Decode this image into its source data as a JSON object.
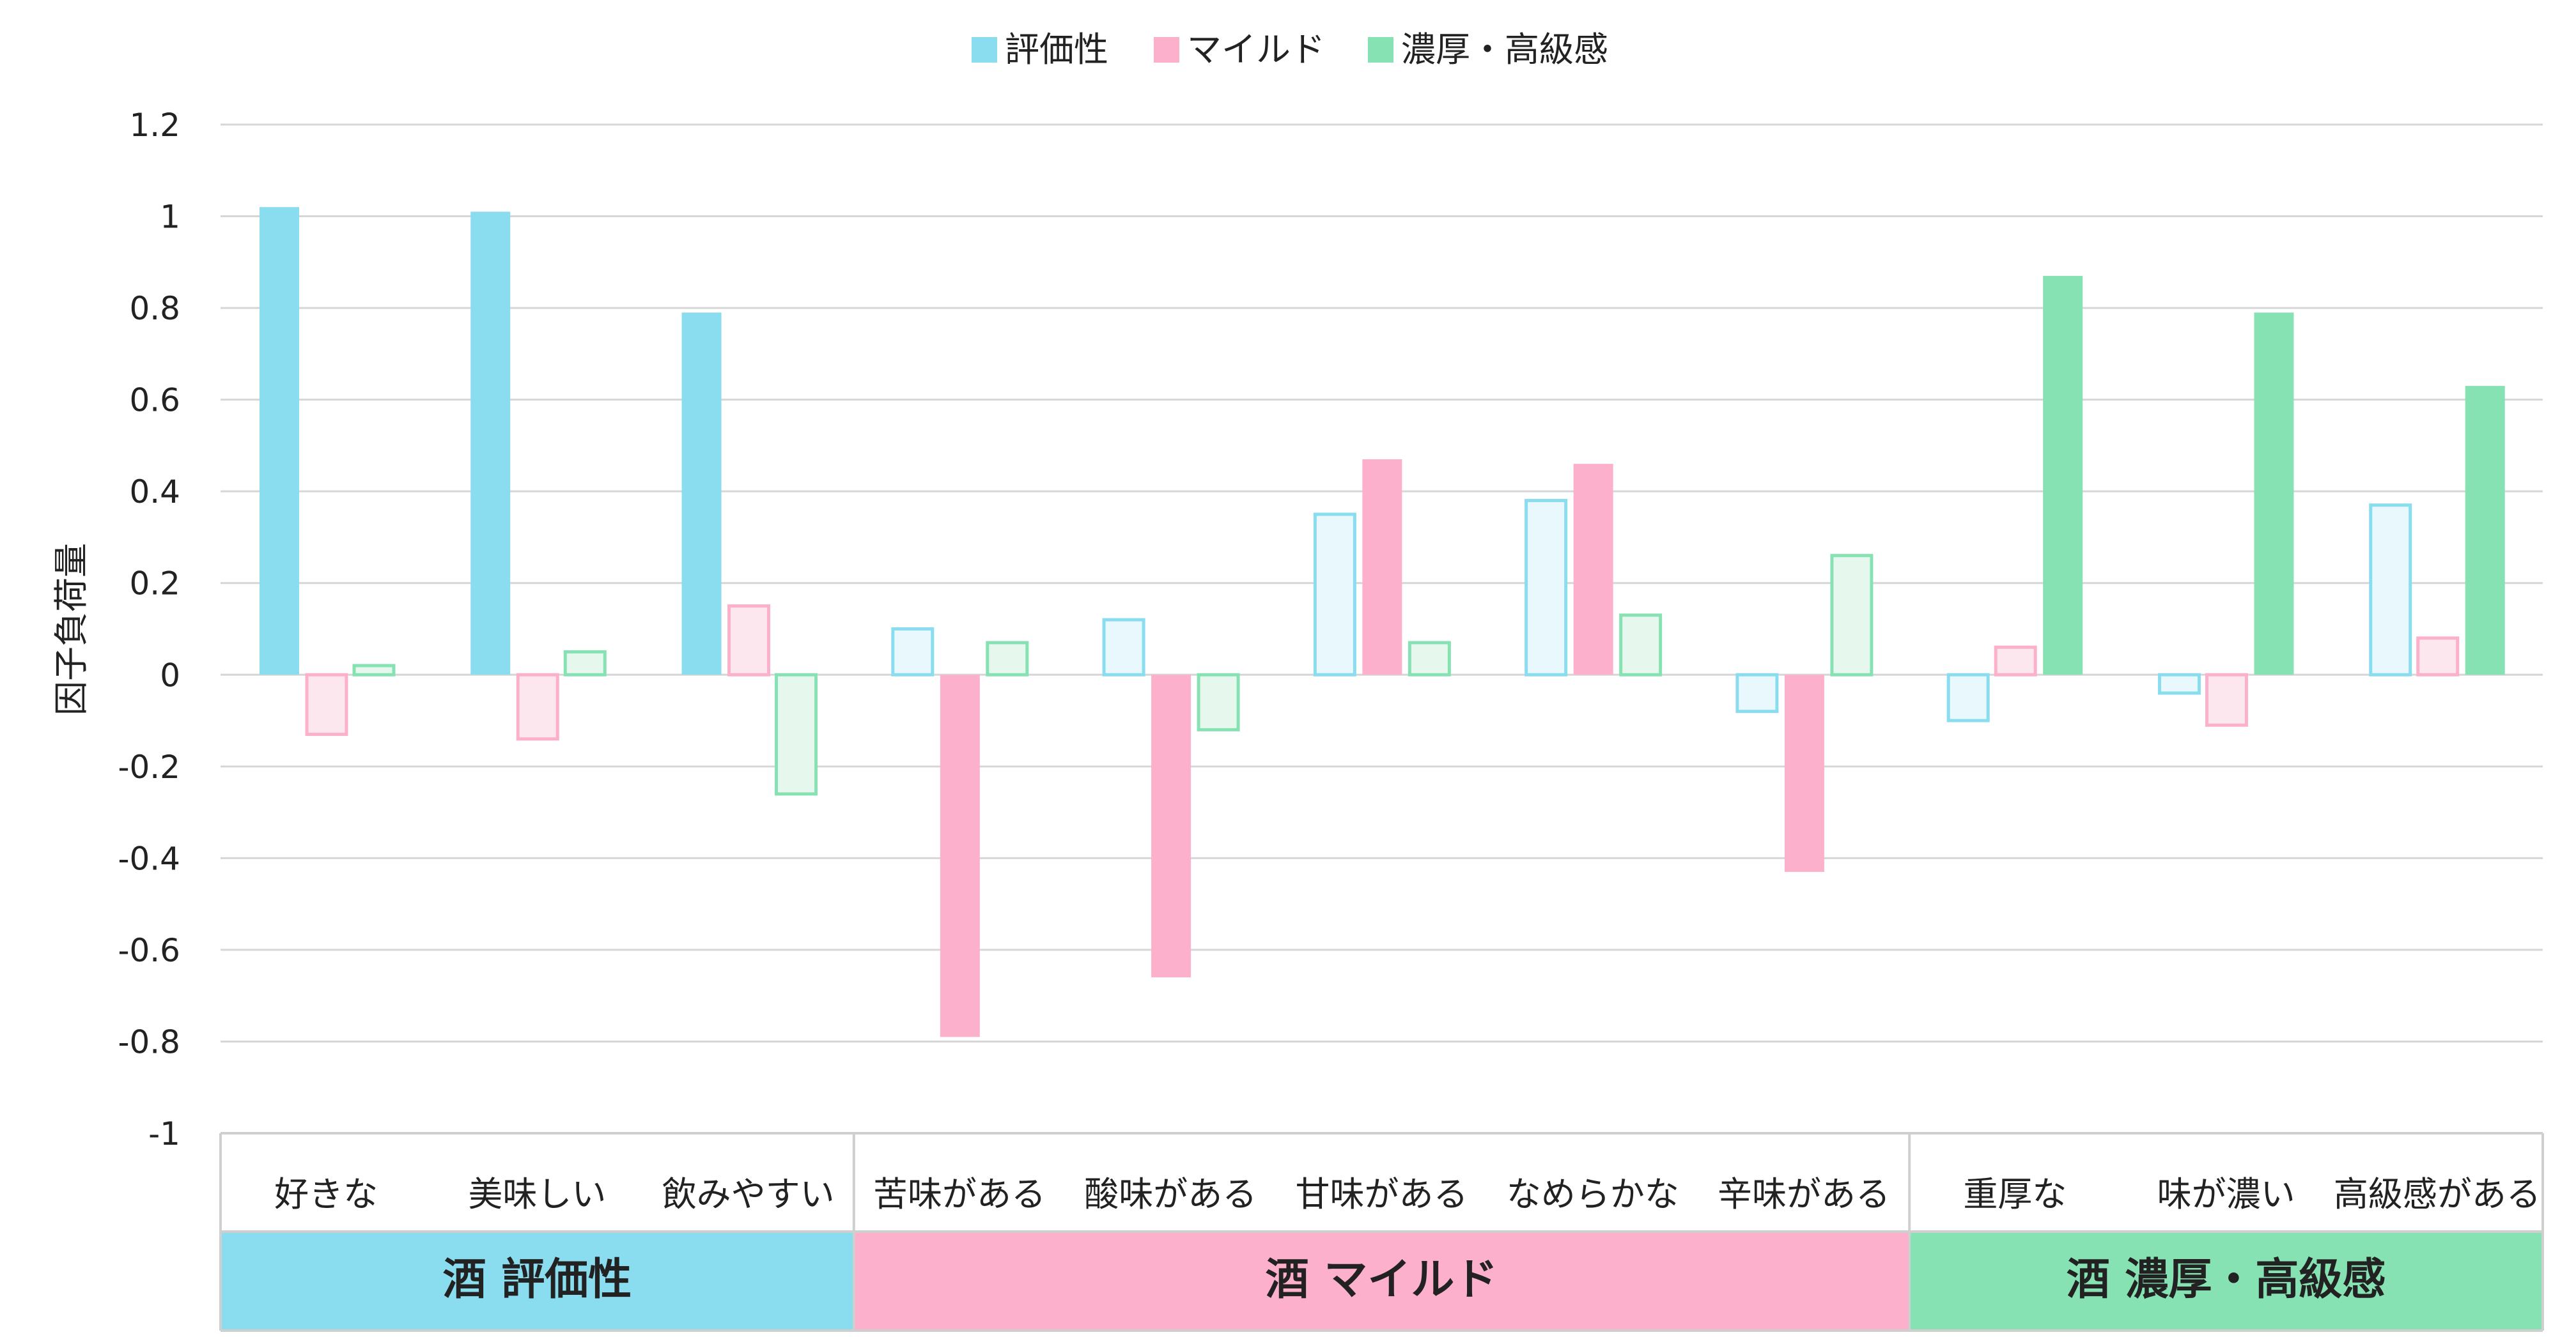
{
  "chart_data": {
    "type": "bar",
    "ylabel": "因子負荷量",
    "ylim": [
      -1,
      1.2
    ],
    "yticks": [
      "1.2",
      "1",
      "0.8",
      "0.6",
      "0.4",
      "0.2",
      "0",
      "-0.2",
      "-0.4",
      "-0.6",
      "-0.8",
      "-1"
    ],
    "ytick_values": [
      1.2,
      1,
      0.8,
      0.6,
      0.4,
      0.2,
      0,
      -0.2,
      -0.4,
      -0.6,
      -0.8,
      -1
    ],
    "grid": true,
    "legend_position": "top-center",
    "categories": [
      "好きな",
      "美味しい",
      "飲みやすい",
      "苦味がある",
      "酸味がある",
      "甘味がある",
      "なめらかな",
      "辛味がある",
      "重厚な",
      "味が濃い",
      "高級感がある"
    ],
    "series": [
      {
        "name": "評価性",
        "color": "#8adcef",
        "light": "#e8f8fc",
        "values": [
          1.02,
          1.01,
          0.79,
          0.1,
          0.12,
          0.35,
          0.38,
          -0.08,
          -0.1,
          -0.04,
          0.37
        ]
      },
      {
        "name": "マイルド",
        "color": "#fcb0cb",
        "light": "#fde7ef",
        "values": [
          -0.13,
          -0.14,
          0.15,
          -0.79,
          -0.66,
          0.47,
          0.46,
          -0.43,
          0.06,
          -0.11,
          0.08
        ]
      },
      {
        "name": "濃厚・高級感",
        "color": "#87e2b3",
        "light": "#e6f8ee",
        "values": [
          0.02,
          0.05,
          -0.26,
          0.07,
          -0.12,
          0.07,
          0.13,
          0.26,
          0.87,
          0.79,
          0.63
        ]
      }
    ],
    "highlight_series": [
      0,
      0,
      0,
      1,
      1,
      1,
      1,
      1,
      2,
      2,
      2
    ],
    "groups": [
      {
        "label": "酒 評価性",
        "start": 0,
        "end": 2,
        "color": "#8adcef"
      },
      {
        "label": "酒 マイルド",
        "start": 3,
        "end": 7,
        "color": "#fcb0cb"
      },
      {
        "label": "酒 濃厚・高級感",
        "start": 8,
        "end": 10,
        "color": "#87e2b3"
      }
    ]
  }
}
